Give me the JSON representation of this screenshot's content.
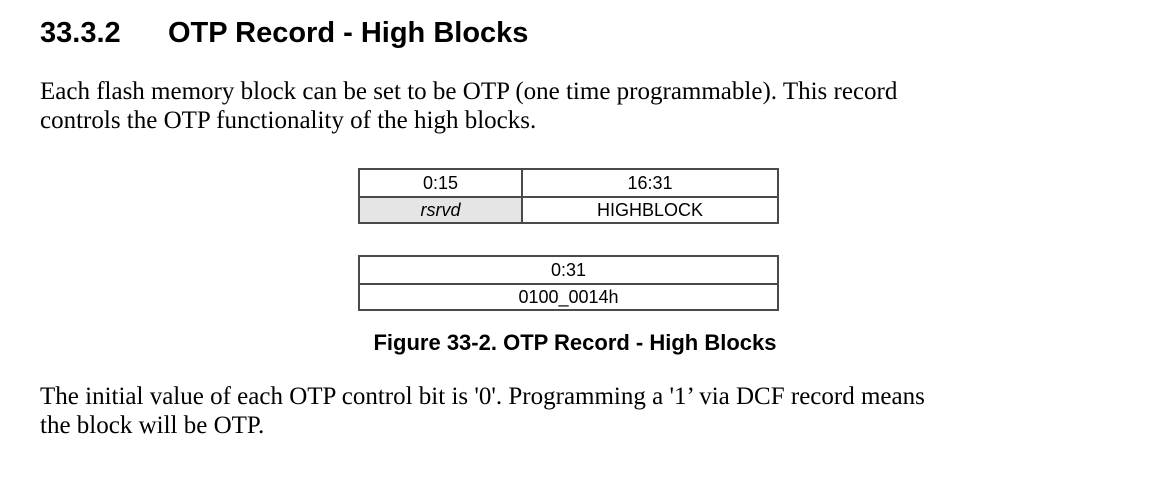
{
  "heading": {
    "number": "33.3.2",
    "title": "OTP Record - High Blocks"
  },
  "intro_paragraph": {
    "lines": [
      "Each flash memory block can be set to be OTP (one time programmable). This record",
      "controls the OTP functionality of the high blocks."
    ]
  },
  "figure": {
    "caption": "Figure 33-2. OTP Record - High Blocks",
    "bitfield_table": {
      "bit_range_cells": [
        "0:15",
        "16:31"
      ],
      "field_cells": [
        "rsrvd",
        "HIGHBLOCK"
      ]
    },
    "address_table": {
      "bit_range": "0:31",
      "value": "0100_0014h"
    }
  },
  "footer_paragraph": {
    "lines": [
      "The initial value of each OTP control bit is '0'. Programming a '1’ via DCF record means",
      "the block will be OTP."
    ]
  },
  "colors": {
    "page_background": "#ffffff",
    "text": "#000000",
    "table_border": "#4a4a4a",
    "reserved_cell_background": "#e5e5e5"
  }
}
